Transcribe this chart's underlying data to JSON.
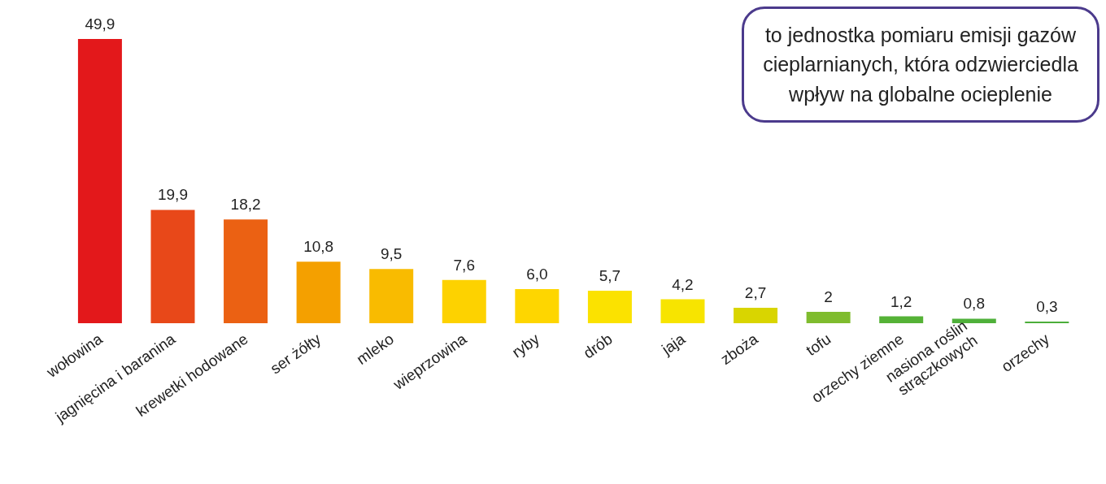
{
  "chart_data": {
    "type": "bar",
    "categories": [
      "wołowina",
      "jagnięcina i baranina",
      "krewetki hodowane",
      "ser żółty",
      "mleko",
      "wieprzowina",
      "ryby",
      "drób",
      "jaja",
      "zboża",
      "tofu",
      "orzechy ziemne",
      "nasiona roślin strączkowych",
      "orzechy"
    ],
    "values": [
      49.9,
      19.9,
      18.2,
      10.8,
      9.5,
      7.6,
      6.0,
      5.7,
      4.2,
      2.7,
      2,
      1.2,
      0.8,
      0.3
    ],
    "value_labels": [
      "49,9",
      "19,9",
      "18,2",
      "10,8",
      "9,5",
      "7,6",
      "6,0",
      "5,7",
      "4,2",
      "2,7",
      "2",
      "1,2",
      "0,8",
      "0,3"
    ],
    "colors": [
      "#e3181b",
      "#e84819",
      "#eb6113",
      "#f4a000",
      "#f9bb00",
      "#fdd200",
      "#fed600",
      "#fbe200",
      "#f7e400",
      "#d9d500",
      "#7fbc2e",
      "#55b236",
      "#4fb03a",
      "#4cae3a"
    ],
    "annotations": [
      "to jednostka pomiaru emisji gazów cieplarnianych, która odzwierciedla wpływ na globalne ocieplenie"
    ],
    "grid": false
  }
}
